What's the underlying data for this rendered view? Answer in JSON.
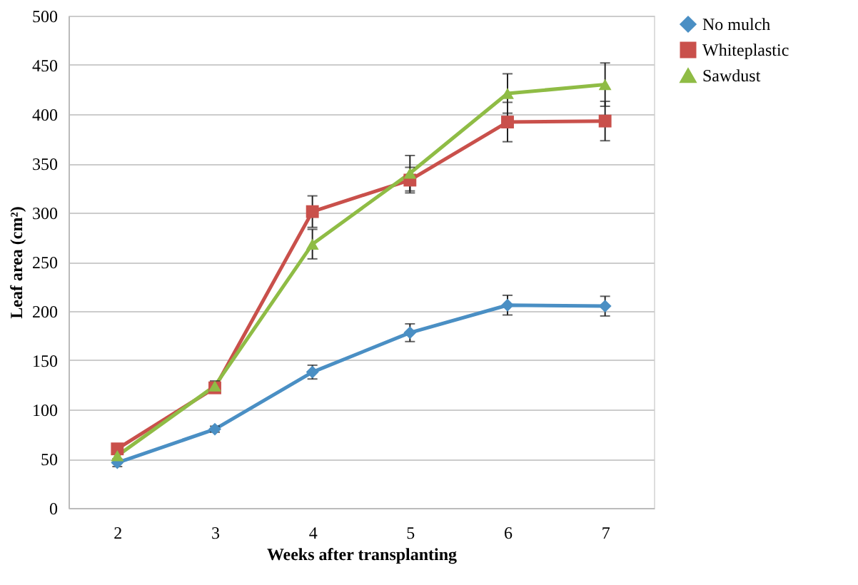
{
  "chart_data": {
    "type": "line",
    "xlabel": "Weeks after transplanting",
    "ylabel": "Leaf area (cm²)",
    "categories": [
      "2",
      "3",
      "4",
      "5",
      "6",
      "7"
    ],
    "series": [
      {
        "name": "No mulch",
        "color": "#4a8fc4",
        "marker": "diamond",
        "values": [
          46,
          80,
          138,
          178,
          206,
          205
        ],
        "errors": [
          4,
          3,
          7,
          9,
          10,
          10
        ]
      },
      {
        "name": "Whiteplastic",
        "color": "#c9504b",
        "marker": "square",
        "values": [
          60,
          122,
          301,
          333,
          392,
          393
        ],
        "errors": [
          null,
          5,
          16,
          13,
          20,
          20
        ]
      },
      {
        "name": "Sawdust",
        "color": "#8fbc45",
        "marker": "triangle",
        "values": [
          53,
          124,
          268,
          340,
          421,
          430
        ],
        "errors": [
          null,
          5,
          15,
          18,
          20,
          22
        ]
      }
    ],
    "ylim": [
      0,
      500
    ],
    "yticks": [
      0,
      50,
      100,
      150,
      200,
      250,
      300,
      350,
      400,
      450,
      500
    ],
    "grid": "y",
    "legend": "right"
  }
}
